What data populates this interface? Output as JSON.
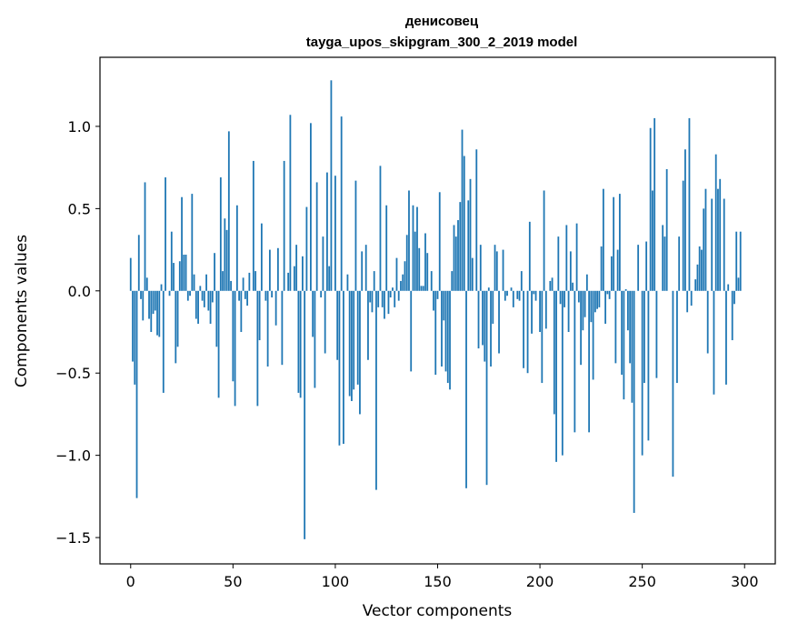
{
  "chart_data": {
    "type": "bar",
    "title": "денисовец",
    "subtitle": "tayga_upos_skipgram_300_2_2019 model",
    "xlabel": "Vector components",
    "ylabel": "Components values",
    "xlim": [
      -15,
      315
    ],
    "ylim": [
      -1.66,
      1.42
    ],
    "xticks": [
      0,
      50,
      100,
      150,
      200,
      250,
      300
    ],
    "xtick_labels": [
      "0",
      "50",
      "100",
      "150",
      "200",
      "250",
      "300"
    ],
    "yticks": [
      -1.5,
      -1.0,
      -0.5,
      0.0,
      0.5,
      1.0
    ],
    "ytick_labels": [
      "−1.5",
      "−1.0",
      "−0.5",
      "0.0",
      "0.5",
      "1.0"
    ],
    "grid": false,
    "legend": "none",
    "bar_color": "#1f77b4",
    "x_start": 0,
    "values": [
      0.2,
      -0.43,
      -0.57,
      -1.26,
      0.34,
      -0.05,
      -0.18,
      0.66,
      0.08,
      -0.17,
      -0.25,
      -0.14,
      -0.12,
      -0.27,
      -0.28,
      0.04,
      -0.62,
      0.69,
      0.0,
      -0.03,
      0.36,
      0.17,
      -0.44,
      -0.34,
      0.18,
      0.57,
      0.22,
      0.22,
      -0.06,
      -0.03,
      0.59,
      0.1,
      -0.17,
      -0.2,
      0.03,
      -0.06,
      -0.1,
      0.1,
      -0.12,
      -0.2,
      -0.07,
      0.23,
      -0.34,
      -0.65,
      0.69,
      0.12,
      0.44,
      0.37,
      0.97,
      0.06,
      -0.55,
      -0.7,
      0.52,
      -0.06,
      -0.25,
      0.08,
      -0.05,
      -0.09,
      0.11,
      0.0,
      0.79,
      0.12,
      -0.7,
      -0.3,
      0.41,
      0.0,
      -0.06,
      -0.46,
      0.25,
      -0.04,
      0.0,
      -0.21,
      0.26,
      0.0,
      -0.45,
      0.79,
      0.0,
      0.11,
      1.07,
      0.0,
      0.15,
      0.28,
      -0.62,
      -0.65,
      0.21,
      -1.51,
      0.51,
      0.0,
      1.02,
      -0.28,
      -0.59,
      0.66,
      0.0,
      -0.04,
      0.33,
      -0.38,
      0.72,
      0.15,
      1.28,
      0.0,
      0.7,
      -0.42,
      -0.94,
      1.06,
      -0.93,
      0.0,
      0.1,
      -0.64,
      -0.67,
      -0.6,
      0.67,
      -0.57,
      -0.75,
      0.24,
      0.0,
      0.28,
      -0.42,
      -0.07,
      -0.13,
      0.12,
      -1.21,
      -0.1,
      0.76,
      -0.1,
      -0.17,
      0.52,
      -0.14,
      -0.04,
      0.02,
      -0.1,
      0.2,
      -0.06,
      0.06,
      0.1,
      0.18,
      0.34,
      0.61,
      -0.49,
      0.52,
      0.36,
      0.51,
      0.26,
      0.03,
      0.03,
      0.35,
      0.23,
      0.0,
      0.12,
      -0.12,
      -0.51,
      -0.05,
      0.6,
      -0.46,
      -0.18,
      -0.49,
      -0.56,
      -0.6,
      0.12,
      0.4,
      0.33,
      0.43,
      0.54,
      0.98,
      0.82,
      -1.2,
      0.55,
      0.68,
      0.2,
      0.0,
      0.86,
      -0.35,
      0.28,
      -0.33,
      -0.43,
      -1.18,
      0.02,
      -0.46,
      -0.2,
      0.28,
      0.24,
      -0.38,
      0.0,
      0.25,
      -0.06,
      -0.03,
      0.0,
      0.02,
      -0.1,
      0.0,
      -0.05,
      -0.06,
      0.12,
      -0.47,
      0.0,
      -0.5,
      0.42,
      -0.26,
      -0.02,
      -0.06,
      0.0,
      -0.25,
      -0.56,
      0.61,
      -0.23,
      0.0,
      0.06,
      0.08,
      -0.75,
      -1.04,
      0.33,
      -0.08,
      -1.0,
      -0.1,
      0.4,
      -0.25,
      0.24,
      0.05,
      -0.86,
      0.41,
      -0.07,
      -0.45,
      -0.24,
      -0.16,
      0.1,
      -0.86,
      -0.19,
      -0.54,
      -0.13,
      -0.11,
      -0.1,
      0.27,
      0.62,
      -0.2,
      -0.02,
      -0.05,
      0.21,
      0.57,
      -0.44,
      0.25,
      0.59,
      -0.51,
      -0.66,
      0.01,
      -0.24,
      -0.44,
      -0.68,
      -1.35,
      0.0,
      0.28,
      0.0,
      -1.0,
      -0.56,
      0.3,
      -0.91,
      0.99,
      0.61,
      1.05,
      -0.53,
      0.0,
      0.0,
      0.4,
      0.33,
      0.74,
      0.0,
      0.0,
      -1.13,
      0.0,
      -0.56,
      0.33,
      0.0,
      0.67,
      0.86,
      -0.13,
      1.05,
      -0.09,
      0.0,
      0.07,
      0.16,
      0.27,
      0.25,
      0.5,
      0.62,
      -0.38,
      0.0,
      0.56,
      -0.63,
      0.83,
      0.62,
      0.68,
      0.0,
      0.56,
      -0.57,
      0.04,
      0.0,
      -0.3,
      -0.08,
      0.36,
      0.08,
      0.36,
      0.0
    ]
  }
}
